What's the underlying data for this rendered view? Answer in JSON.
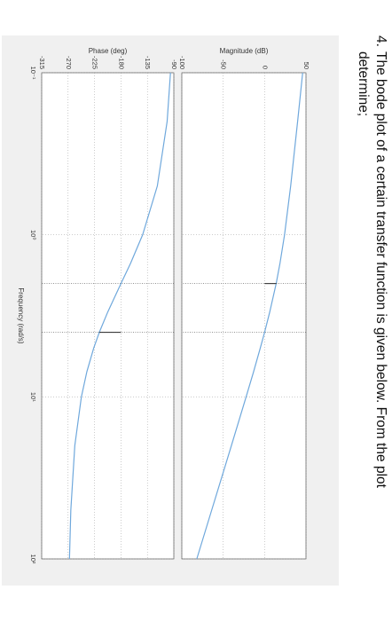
{
  "question": {
    "number": "4.",
    "line1": "The bode plot of a certain transfer function is given below. From the plot",
    "line2": "determine;"
  },
  "chart_data": [
    {
      "type": "line",
      "ylabel": "Magnitude (dB)",
      "log_x": true,
      "grid": true,
      "x": [
        0.1,
        0.2,
        0.5,
        1,
        1.5,
        2,
        3,
        4,
        5,
        7,
        10,
        20,
        50,
        100
      ],
      "series": [
        {
          "color": "#6fa8dc",
          "values": [
            46.0,
            39.9,
            31.5,
            24.1,
            18.6,
            14.0,
            6.2,
            0.0,
            -5.2,
            -13.3,
            -22.3,
            -40.1,
            -63.9,
            -81.9
          ]
        }
      ],
      "xlim": [
        0.1,
        100
      ],
      "xticks": [
        0.1,
        1,
        10,
        100
      ],
      "ylim": [
        -100,
        50
      ],
      "yticks": [
        -100,
        -50,
        0,
        50
      ]
    },
    {
      "type": "line",
      "ylabel": "Phase (deg)",
      "xlabel": "Frequency  (rad/s)",
      "log_x": true,
      "grid": true,
      "x": [
        0.1,
        0.2,
        0.5,
        1,
        1.5,
        2,
        3,
        4,
        5,
        7,
        10,
        20,
        50,
        100
      ],
      "series": [
        {
          "color": "#6fa8dc",
          "values": [
            -95.7,
            -101.4,
            -118.1,
            -143.1,
            -163.7,
            -180,
            -202.6,
            -216.9,
            -226.4,
            -238.1,
            -247.4,
            -258.6,
            -265.4,
            -267.7
          ]
        }
      ],
      "xlim": [
        0.1,
        100
      ],
      "xticks": [
        {
          "value": 0.1,
          "label": "10⁻¹"
        },
        {
          "value": 1,
          "label": "10⁰"
        },
        {
          "value": 10,
          "label": "10¹"
        },
        {
          "value": 100,
          "label": "10²"
        }
      ],
      "ylim": [
        -315,
        -90
      ],
      "yticks": [
        -315,
        -270,
        -225,
        -180,
        -135,
        -90
      ]
    }
  ]
}
